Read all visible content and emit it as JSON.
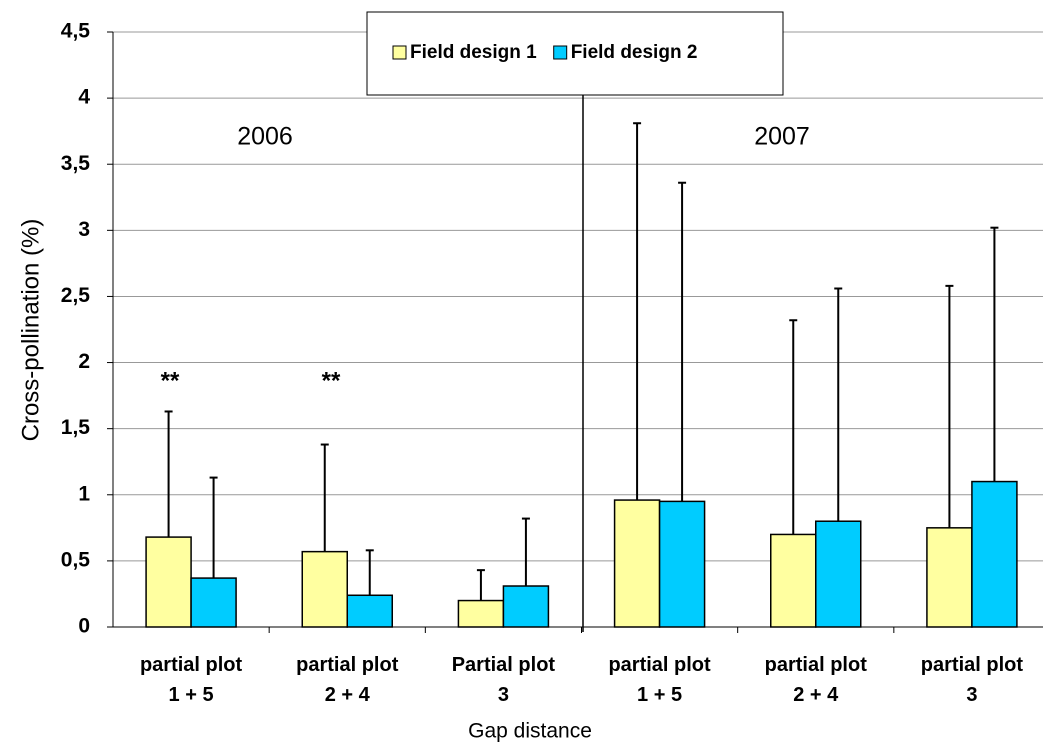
{
  "chart_data": {
    "type": "bar",
    "y_label": "Cross-pollination (%)",
    "x_label": "Gap distance",
    "annotations": [
      "2006",
      "2007"
    ],
    "significance": [
      "**",
      "**"
    ],
    "categories": [
      "partial plot\n1 + 5",
      "partial plot\n2 + 4",
      "Partial plot\n3",
      "partial plot\n1 + 5",
      "partial plot\n2 + 4",
      "partial plot\n3"
    ],
    "series": [
      {
        "name": "Field design 1",
        "color": "#ffffa0",
        "values": [
          0.68,
          0.57,
          0.2,
          0.96,
          0.7,
          0.75
        ],
        "errors": [
          0.95,
          0.81,
          0.23,
          2.85,
          1.62,
          1.83
        ]
      },
      {
        "name": "Field design 2",
        "color": "#00ccff",
        "values": [
          0.37,
          0.24,
          0.31,
          0.95,
          0.8,
          1.1
        ],
        "errors": [
          0.76,
          0.34,
          0.51,
          2.41,
          1.76,
          1.92
        ]
      }
    ],
    "ylim": [
      0,
      4.5
    ],
    "yticks": [
      0,
      {
        "value": 0.5,
        "label": "0,5"
      },
      1,
      {
        "value": 1.5,
        "label": "1,5"
      },
      2,
      {
        "value": 2.5,
        "label": "2,5"
      },
      3,
      {
        "value": 3.5,
        "label": "3,5"
      },
      4,
      {
        "value": 4.5,
        "label": "4,5"
      }
    ],
    "grid": true
  }
}
